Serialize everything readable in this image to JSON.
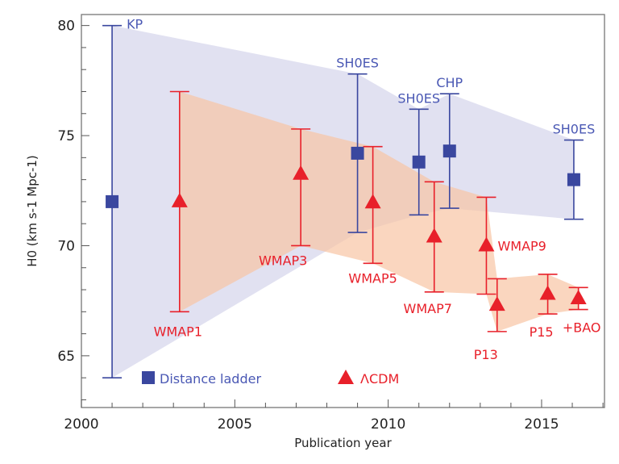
{
  "chart_data": {
    "type": "scatter",
    "xlabel": "Publication year",
    "ylabel": "H0 (km s-1 Mpc-1)",
    "xlim": [
      2000,
      2017.05
    ],
    "ylim": [
      62.65,
      80.5
    ],
    "x_ticks": [
      2000,
      2005,
      2010,
      2015
    ],
    "y_ticks": [
      65,
      70,
      75,
      80
    ],
    "grid": false,
    "legend_placement": "bottom",
    "colors": {
      "distance_ladder": "#3a479f",
      "distance_band": "#dcdcee",
      "lcdm": "#e8202a",
      "lcdm_band": "#f8c4a4"
    },
    "series": [
      {
        "name": "Distance ladder",
        "marker": "square",
        "points": [
          {
            "label": "KP",
            "x": 2001.0,
            "y": 72.0,
            "low": 64.0,
            "high": 80.0
          },
          {
            "label": "SH0ES",
            "x": 2009.0,
            "y": 74.2,
            "low": 70.6,
            "high": 77.8
          },
          {
            "label": "SH0ES",
            "x": 2011.0,
            "y": 73.8,
            "low": 71.4,
            "high": 76.2
          },
          {
            "label": "CHP",
            "x": 2012.0,
            "y": 74.3,
            "low": 71.7,
            "high": 76.9
          },
          {
            "label": "SH0ES",
            "x": 2016.05,
            "y": 73.0,
            "low": 71.2,
            "high": 74.8
          }
        ]
      },
      {
        "name": "ΛCDM",
        "marker": "triangle",
        "points": [
          {
            "label": "WMAP1",
            "x": 2003.2,
            "y": 72.0,
            "low": 67.0,
            "high": 77.0
          },
          {
            "label": "WMAP3",
            "x": 2007.15,
            "y": 73.25,
            "low": 70.0,
            "high": 75.3
          },
          {
            "label": "WMAP5",
            "x": 2009.5,
            "y": 71.95,
            "low": 69.2,
            "high": 74.5
          },
          {
            "label": "WMAP7",
            "x": 2011.5,
            "y": 70.4,
            "low": 67.9,
            "high": 72.9
          },
          {
            "label": "WMAP9",
            "x": 2013.2,
            "y": 70.0,
            "low": 67.8,
            "high": 72.2
          },
          {
            "label": "P13",
            "x": 2013.55,
            "y": 67.3,
            "low": 66.1,
            "high": 68.5
          },
          {
            "label": "P15",
            "x": 2015.2,
            "y": 67.8,
            "low": 66.9,
            "high": 68.7
          },
          {
            "label": "+BAO",
            "x": 2016.2,
            "y": 67.6,
            "low": 67.1,
            "high": 68.1
          }
        ]
      }
    ]
  }
}
